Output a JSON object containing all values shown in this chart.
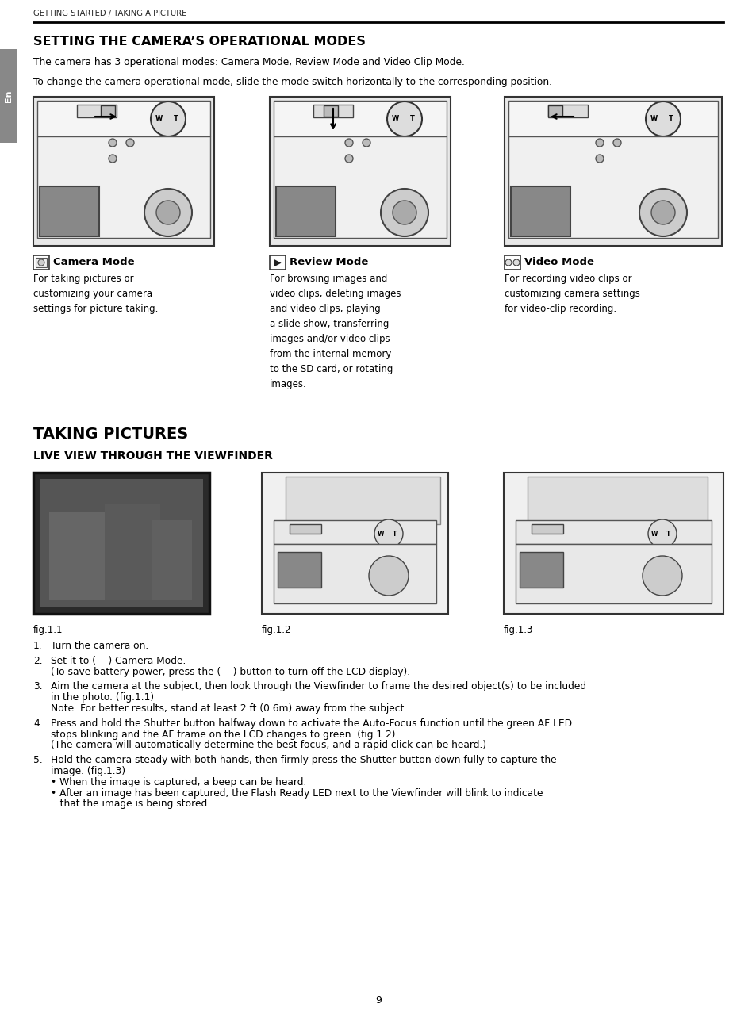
{
  "bg_color": "#ffffff",
  "header_text": "GETTING STARTED / TAKING A PICTURE",
  "section1_title": "SETTING THE CAMERA’S OPERATIONAL MODES",
  "section1_intro": "The camera has 3 operational modes: Camera Mode, Review Mode and Video Clip Mode.",
  "section1_desc": "To change the camera operational mode, slide the mode switch horizontally to the corresponding position.",
  "mode1_title": "Camera Mode",
  "mode1_desc": "For taking pictures or\ncustomizing your camera\nsettings for picture taking.",
  "mode2_title": "Review Mode",
  "mode2_desc": "For browsing images and\nvideo clips, deleting images\nand video clips, playing\na slide show, transferring\nimages and/or video clips\nfrom the internal memory\nto the SD card, or rotating\nimages.",
  "mode3_title": "Video Mode",
  "mode3_desc": "For recording video clips or\ncustomizing camera settings\nfor video-clip recording.",
  "section2_title": "TAKING PICTURES",
  "section2_sub": "LIVE VIEW THROUGH THE VIEWFINDER",
  "fig1_label": "fig.1.1",
  "fig2_label": "fig.1.2",
  "fig3_label": "fig.1.3",
  "step1": "Turn the camera on.",
  "step2a": "Set it to (    ) Camera Mode.",
  "step2b": "(To save battery power, press the (    ) button to turn off the LCD display).",
  "step3a": "Aim the camera at the subject, then look through the Viewfinder to frame the desired object(s) to be included",
  "step3b": "in the photo. (fig.1.1)",
  "step3c": "Note: For better results, stand at least 2 ft (0.6m) away from the subject.",
  "step4a": "Press and hold the Shutter button halfway down to activate the Auto-Focus function until the green AF LED",
  "step4b": "stops blinking and the AF frame on the LCD changes to green. (fig.1.2)",
  "step4c": "(The camera will automatically determine the best focus, and a rapid click can be heard.)",
  "step5a": "Hold the camera steady with both hands, then firmly press the Shutter button down fully to capture the",
  "step5b": "image. (fig.1.3)",
  "step5c": "• When the image is captured, a beep can be heard.",
  "step5d": "• After an image has been captured, the Flash Ready LED next to the Viewfinder will blink to indicate",
  "step5e": "   that the image is being stored.",
  "page_number": "9",
  "tab_text": "En"
}
